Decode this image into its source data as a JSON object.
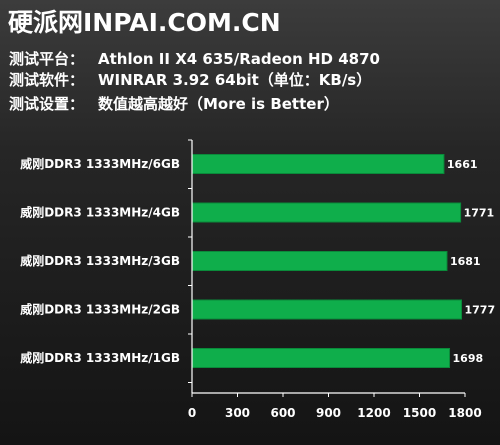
{
  "header": {
    "title": "硬派网INPAI.COM.CN",
    "platform_label": "测试平台：",
    "platform_value": "Athlon II X4 635/Radeon HD 4870",
    "software_label": "测试软件：",
    "software_value": "WINRAR 3.92 64bit（单位：KB/s）",
    "settings_label": "测试设置：",
    "settings_value": "数值越高越好（More is Better）"
  },
  "colors": {
    "bar": "#0fae4b",
    "bar_edge": "#0a8a3a",
    "axis": "#ffffff"
  },
  "chart_data": {
    "type": "bar",
    "orientation": "horizontal",
    "categories": [
      "威刚DDR3 1333MHz/6GB",
      "威刚DDR3 1333MHz/4GB",
      "威刚DDR3 1333MHz/3GB",
      "威刚DDR3 1333MHz/2GB",
      "威刚DDR3 1333MHz/1GB"
    ],
    "values": [
      1661,
      1771,
      1681,
      1777,
      1698
    ],
    "xlim": [
      0,
      1800
    ],
    "xticks": [
      0,
      300,
      600,
      900,
      1200,
      1500,
      1800
    ],
    "xlabel": "",
    "ylabel": "",
    "grid": false,
    "legend": "none"
  }
}
